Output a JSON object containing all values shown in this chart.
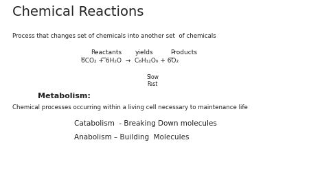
{
  "title": "Chemical Reactions",
  "subtitle": "Process that changes set of chemicals into another set  of chemicals",
  "label_reactants": "Reactants",
  "label_yields": "yields",
  "label_products": "Products",
  "slow_label": "Slow",
  "fast_label": "Fast",
  "metabolism_label": "Metabolism:",
  "metabolism_desc": "Chemical processes occurring within a living cell necessary to maintenance life",
  "catabolism": "Catabolism  - Breaking Down molecules",
  "anabolism": "Anabolism – Building  Molecules",
  "bg_color": "#ffffff",
  "text_color": "#222222",
  "title_fontsize": 14,
  "subtitle_fontsize": 6.2,
  "equation_fontsize": 6.5,
  "small_fontsize": 5.5,
  "metabolism_fontsize": 8,
  "catabolism_fontsize": 7.5
}
